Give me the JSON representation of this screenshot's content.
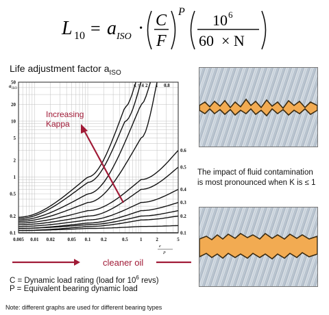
{
  "formula": {
    "lhs": "L",
    "lhs_sub": "10",
    "a": "a",
    "a_sub": "ISO",
    "dot": "·",
    "C": "C",
    "F": "F",
    "P": "P",
    "num": "10",
    "num_sup": "6",
    "den": "60  × N",
    "eq": "="
  },
  "chart_title": "Life adjustment factor a",
  "chart_title_sub": "ISO",
  "arrow_label_line1": "Increasing",
  "arrow_label_line2": "Kappa",
  "cleaner_label": "cleaner oil",
  "legend_c_prefix": "C = Dynamic load rating (load for 10",
  "legend_c_sup": "6",
  "legend_c_suffix": " revs)",
  "legend_p": "P = Equivalent bearing dynamic load",
  "note": "Note: different graphs are used for different bearing types",
  "side_text_line1": "The impact of fluid contamination",
  "side_text_line2": "is most pronounced when K is ≤ 1",
  "colors": {
    "arrow": "#a01a36",
    "band": "#f2ab52",
    "band_edge": "#3a2a10",
    "steel": "#c6d1dc"
  },
  "chart_data": {
    "type": "line",
    "xscale": "log",
    "yscale": "log",
    "xlim": [
      0.005,
      5
    ],
    "ylim": [
      0.1,
      50
    ],
    "x_ticks": [
      "0.005",
      "0.01",
      "0.02",
      "0.05",
      "0.1",
      "0.2",
      "0.5",
      "1",
      "2",
      "5"
    ],
    "y_ticks": [
      "0.1",
      "0.2",
      "0.5",
      "1",
      "2",
      "5",
      "10",
      "20",
      "50"
    ],
    "ylabel": "a_ISO",
    "xlabel": "e_C · C_u / P",
    "top_kappa_labels": [
      "κ = 4",
      "2",
      "1",
      "0.8"
    ],
    "right_kappa_labels": [
      "0.6",
      "0.5",
      "0.4",
      "0.3",
      "0.2",
      "0.1"
    ],
    "series": [
      {
        "name": "0.1",
        "x": [
          0.005,
          0.1,
          1,
          5
        ],
        "y": [
          0.1,
          0.1,
          0.1,
          0.1
        ]
      },
      {
        "name": "0.15",
        "x": [
          0.005,
          0.1,
          1,
          5
        ],
        "y": [
          0.11,
          0.12,
          0.13,
          0.135
        ]
      },
      {
        "name": "0.2",
        "x": [
          0.005,
          0.1,
          1,
          5
        ],
        "y": [
          0.11,
          0.13,
          0.17,
          0.2
        ]
      },
      {
        "name": "0.25",
        "x": [
          0.005,
          0.1,
          1,
          5
        ],
        "y": [
          0.12,
          0.14,
          0.2,
          0.25
        ]
      },
      {
        "name": "0.3",
        "x": [
          0.005,
          0.1,
          1,
          5
        ],
        "y": [
          0.12,
          0.15,
          0.25,
          0.35
        ]
      },
      {
        "name": "0.4",
        "x": [
          0.005,
          0.1,
          1,
          5
        ],
        "y": [
          0.13,
          0.17,
          0.35,
          0.6
        ]
      },
      {
        "name": "0.5",
        "x": [
          0.005,
          0.1,
          1,
          5
        ],
        "y": [
          0.14,
          0.2,
          0.6,
          1.5
        ]
      },
      {
        "name": "0.6",
        "x": [
          0.005,
          0.1,
          1,
          5
        ],
        "y": [
          0.15,
          0.25,
          0.9,
          3.0
        ]
      },
      {
        "name": "0.8",
        "x": [
          0.005,
          0.1,
          1,
          2
        ],
        "y": [
          0.16,
          0.35,
          5.0,
          50
        ]
      },
      {
        "name": "1",
        "x": [
          0.005,
          0.1,
          1,
          1.5
        ],
        "y": [
          0.17,
          0.5,
          20,
          50
        ]
      },
      {
        "name": "2",
        "x": [
          0.005,
          0.1,
          0.5,
          1
        ],
        "y": [
          0.18,
          0.8,
          10,
          50
        ]
      },
      {
        "name": "4",
        "x": [
          0.005,
          0.1,
          0.5,
          0.8
        ],
        "y": [
          0.19,
          1.0,
          18,
          50
        ]
      }
    ]
  }
}
